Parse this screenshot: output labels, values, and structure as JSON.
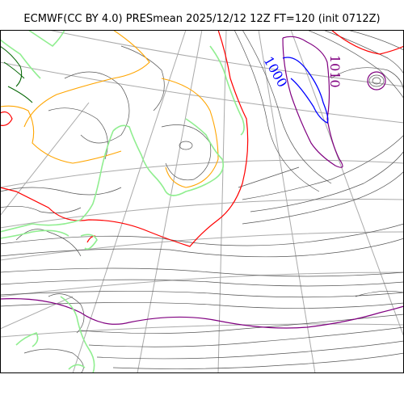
{
  "title": "ECMWF(CC BY 4.0) PRESmean 2025/12/12 12Z FT=120 (init 0712Z)",
  "isobar_labels": [
    {
      "text": "1000",
      "color": "#0000ff"
    },
    {
      "text": "1010",
      "color": "#800080"
    }
  ],
  "colors": {
    "isobar_thin": "#555555",
    "isobar_1000": "#0000ff",
    "isobar_1010": "#800080",
    "isobar_1020": "#ff0000",
    "isobar_low": "#ffa500",
    "coastline": "#90ee90",
    "graticule": "#aaaaaa"
  }
}
